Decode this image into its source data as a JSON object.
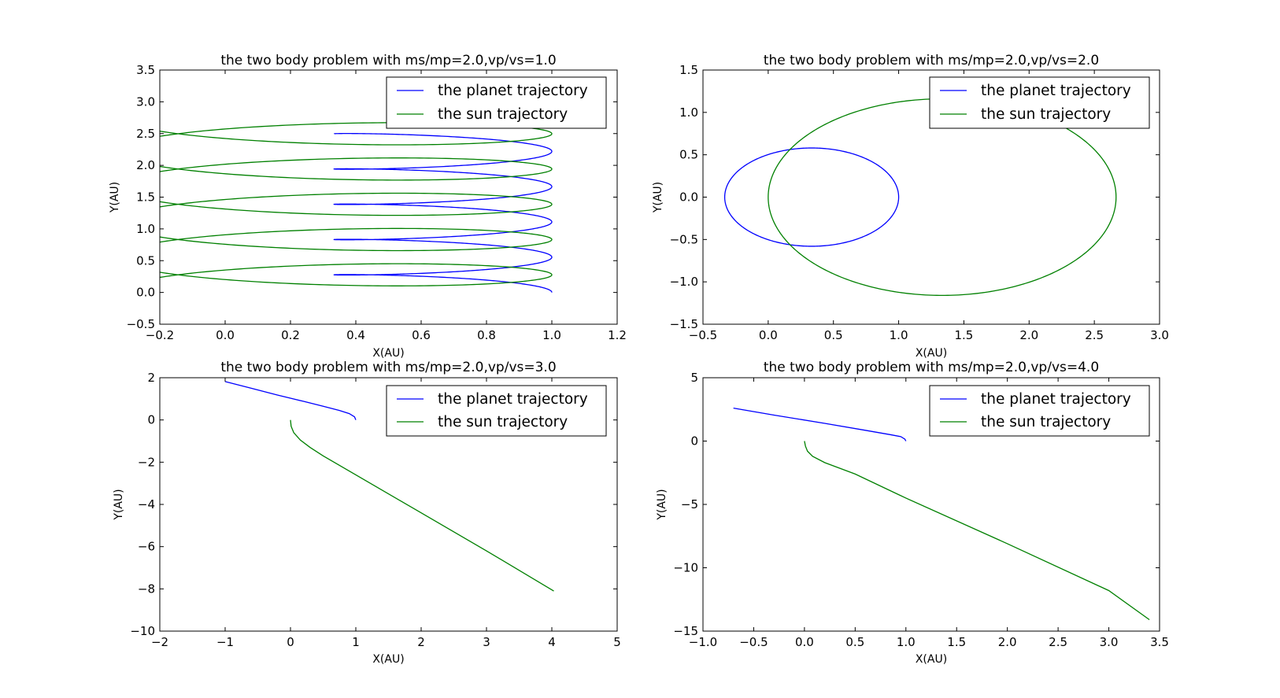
{
  "figure": {
    "background": "#ffffff",
    "planet_color": "#0000ff",
    "sun_color": "#008000"
  },
  "chart_data": [
    {
      "type": "line",
      "title": "the two body problem with ms/mp=2.0,vp/vs=1.0",
      "xlabel": "X(AU)",
      "ylabel": "Y(AU)",
      "xlim": [
        -0.2,
        1.2
      ],
      "ylim": [
        -0.5,
        3.5
      ],
      "xticks": [
        -0.2,
        0.0,
        0.2,
        0.4,
        0.6,
        0.8,
        1.0,
        1.2
      ],
      "yticks": [
        -0.5,
        0.0,
        0.5,
        1.0,
        1.5,
        2.0,
        2.5,
        3.0,
        3.5
      ],
      "xtick_labels": [
        "−0.2",
        "0.0",
        "0.2",
        "0.4",
        "0.6",
        "0.8",
        "1.0",
        "1.2"
      ],
      "ytick_labels": [
        "−0.5",
        "0.0",
        "0.5",
        "1.0",
        "1.5",
        "2.0",
        "2.5",
        "3.0",
        "3.5"
      ],
      "grid": false,
      "legend": "top-right",
      "series": [
        {
          "name": "the planet trajectory",
          "color": "#0000ff",
          "shape": "helix",
          "cx": 0.6667,
          "cy0": 0.0,
          "ax": 0.3333,
          "ay": 0.1,
          "turns": 4.5,
          "pitch": 0.555
        },
        {
          "name": "the sun trajectory",
          "color": "#008000",
          "shape": "helix",
          "cx": 0.3333,
          "cy0": 0.0,
          "ax": 0.6667,
          "ay": 0.3,
          "turns": 5.0,
          "pitch": 0.555,
          "phase": 180
        }
      ]
    },
    {
      "type": "line",
      "title": "the two body problem with ms/mp=2.0,vp/vs=2.0",
      "xlabel": "X(AU)",
      "ylabel": "Y(AU)",
      "xlim": [
        -0.5,
        3.0
      ],
      "ylim": [
        -1.5,
        1.5
      ],
      "xticks": [
        -0.5,
        0.0,
        0.5,
        1.0,
        1.5,
        2.0,
        2.5,
        3.0
      ],
      "yticks": [
        -1.5,
        -1.0,
        -0.5,
        0.0,
        0.5,
        1.0,
        1.5
      ],
      "xtick_labels": [
        "−0.5",
        "0.0",
        "0.5",
        "1.0",
        "1.5",
        "2.0",
        "2.5",
        "3.0"
      ],
      "ytick_labels": [
        "−1.5",
        "−1.0",
        "−0.5",
        "0.0",
        "0.5",
        "1.0",
        "1.5"
      ],
      "grid": false,
      "legend": "top-right",
      "series": [
        {
          "name": "the planet trajectory",
          "color": "#0000ff",
          "shape": "ellipse",
          "cx": 0.3333,
          "cy": 0.0,
          "rx": 0.6667,
          "ry": 0.58
        },
        {
          "name": "the sun trajectory",
          "color": "#008000",
          "shape": "ellipse",
          "cx": 1.3333,
          "cy": 0.0,
          "rx": 1.3333,
          "ry": 1.16
        }
      ]
    },
    {
      "type": "line",
      "title": "the two body problem with ms/mp=2.0,vp/vs=3.0",
      "xlabel": "X(AU)",
      "ylabel": "Y(AU)",
      "xlim": [
        -2,
        5
      ],
      "ylim": [
        -10,
        2
      ],
      "xticks": [
        -2,
        -1,
        0,
        1,
        2,
        3,
        4,
        5
      ],
      "yticks": [
        -10,
        -8,
        -6,
        -4,
        -2,
        0,
        2
      ],
      "xtick_labels": [
        "−2",
        "−1",
        "0",
        "1",
        "2",
        "3",
        "4",
        "5"
      ],
      "ytick_labels": [
        "−10",
        "−8",
        "−6",
        "−4",
        "−2",
        "0",
        "2"
      ],
      "grid": false,
      "legend": "top-right",
      "series": [
        {
          "name": "the planet trajectory",
          "color": "#0000ff",
          "x": [
            1.0,
            0.98,
            0.9,
            0.75,
            0.5,
            0.2,
            -0.2,
            -0.6,
            -1.0
          ],
          "y": [
            0.0,
            0.15,
            0.3,
            0.45,
            0.65,
            0.88,
            1.18,
            1.5,
            1.82
          ]
        },
        {
          "name": "the sun trajectory",
          "color": "#008000",
          "x": [
            0.0,
            0.01,
            0.05,
            0.15,
            0.3,
            0.5,
            1.0,
            2.0,
            3.0,
            4.03
          ],
          "y": [
            0.0,
            -0.3,
            -0.6,
            -0.95,
            -1.3,
            -1.7,
            -2.6,
            -4.4,
            -6.2,
            -8.1
          ]
        }
      ]
    },
    {
      "type": "line",
      "title": "the two body problem with ms/mp=2.0,vp/vs=4.0",
      "xlabel": "X(AU)",
      "ylabel": "Y(AU)",
      "xlim": [
        -1.0,
        3.5
      ],
      "ylim": [
        -15,
        5
      ],
      "xticks": [
        -1.0,
        -0.5,
        0.0,
        0.5,
        1.0,
        1.5,
        2.0,
        2.5,
        3.0,
        3.5
      ],
      "yticks": [
        -15,
        -10,
        -5,
        0,
        5
      ],
      "xtick_labels": [
        "−1.0",
        "−0.5",
        "0.0",
        "0.5",
        "1.0",
        "1.5",
        "2.0",
        "2.5",
        "3.0",
        "3.5"
      ],
      "ytick_labels": [
        "−15",
        "−10",
        "−5",
        "0",
        "5"
      ],
      "grid": false,
      "legend": "top-right",
      "series": [
        {
          "name": "the planet trajectory",
          "color": "#0000ff",
          "x": [
            1.0,
            0.99,
            0.95,
            0.85,
            0.6,
            0.2,
            -0.3,
            -0.7
          ],
          "y": [
            0.0,
            0.15,
            0.35,
            0.5,
            0.85,
            1.4,
            2.05,
            2.6
          ]
        },
        {
          "name": "the sun trajectory",
          "color": "#008000",
          "x": [
            0.0,
            0.01,
            0.03,
            0.08,
            0.2,
            0.5,
            1.0,
            2.0,
            3.0,
            3.4
          ],
          "y": [
            0.0,
            -0.4,
            -0.8,
            -1.2,
            -1.7,
            -2.6,
            -4.5,
            -8.1,
            -11.8,
            -14.1
          ]
        }
      ]
    }
  ]
}
